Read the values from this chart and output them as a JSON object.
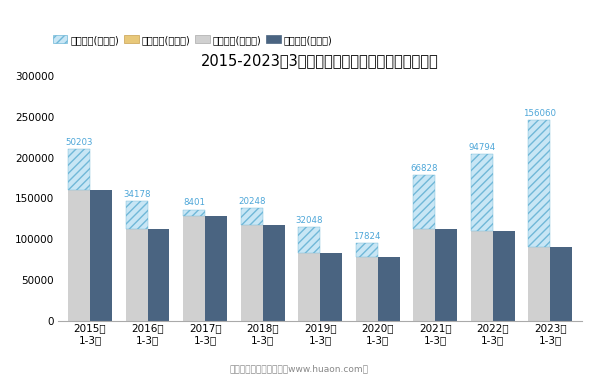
{
  "title": "2015-2023年3月河北省外商投资企业进出口差额图",
  "subtitle": "制图：华经产业研究院（www.huaon.com）",
  "categories": [
    "2015年\n1-3月",
    "2016年\n1-3月",
    "2017年\n1-3月",
    "2018年\n1-3月",
    "2019年\n1-3月",
    "2020年\n1-3月",
    "2021年\n1-3月",
    "2022年\n1-3月",
    "2023年\n1-3月"
  ],
  "surplus_values": [
    50203,
    34178,
    8401,
    20248,
    32048,
    17824,
    66828,
    94794,
    156060
  ],
  "export_total": [
    210203,
    147178,
    136401,
    138248,
    115048,
    95824,
    178828,
    204794,
    246060
  ],
  "import_total": [
    160000,
    113000,
    128000,
    118000,
    83000,
    78000,
    112000,
    110000,
    90000
  ],
  "ylim": [
    0,
    300000
  ],
  "yticks": [
    0,
    50000,
    100000,
    150000,
    200000,
    250000,
    300000
  ],
  "export_color": "#d0d0d0",
  "import_color": "#4a6481",
  "hatch_color": "#70b8d8",
  "hatch_facecolor": "#c8e6f5",
  "surplus_label_color": "#4da6d8",
  "bar_width": 0.38,
  "legend_labels": [
    "贸易顺差(万美元)",
    "贸易逆差(万美元)",
    "出口总额(万美元)",
    "进口总额(万美元)"
  ]
}
